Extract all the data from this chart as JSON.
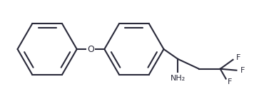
{
  "bg_color": "#ffffff",
  "line_color": "#2a2a3a",
  "line_width": 1.5,
  "fig_width": 3.56,
  "fig_height": 1.39,
  "dpi": 100,
  "O_label": "O",
  "NH2_label": "NH₂",
  "F_label": "F",
  "font_size_O": 9,
  "font_size_NH2": 8,
  "font_size_F": 8
}
